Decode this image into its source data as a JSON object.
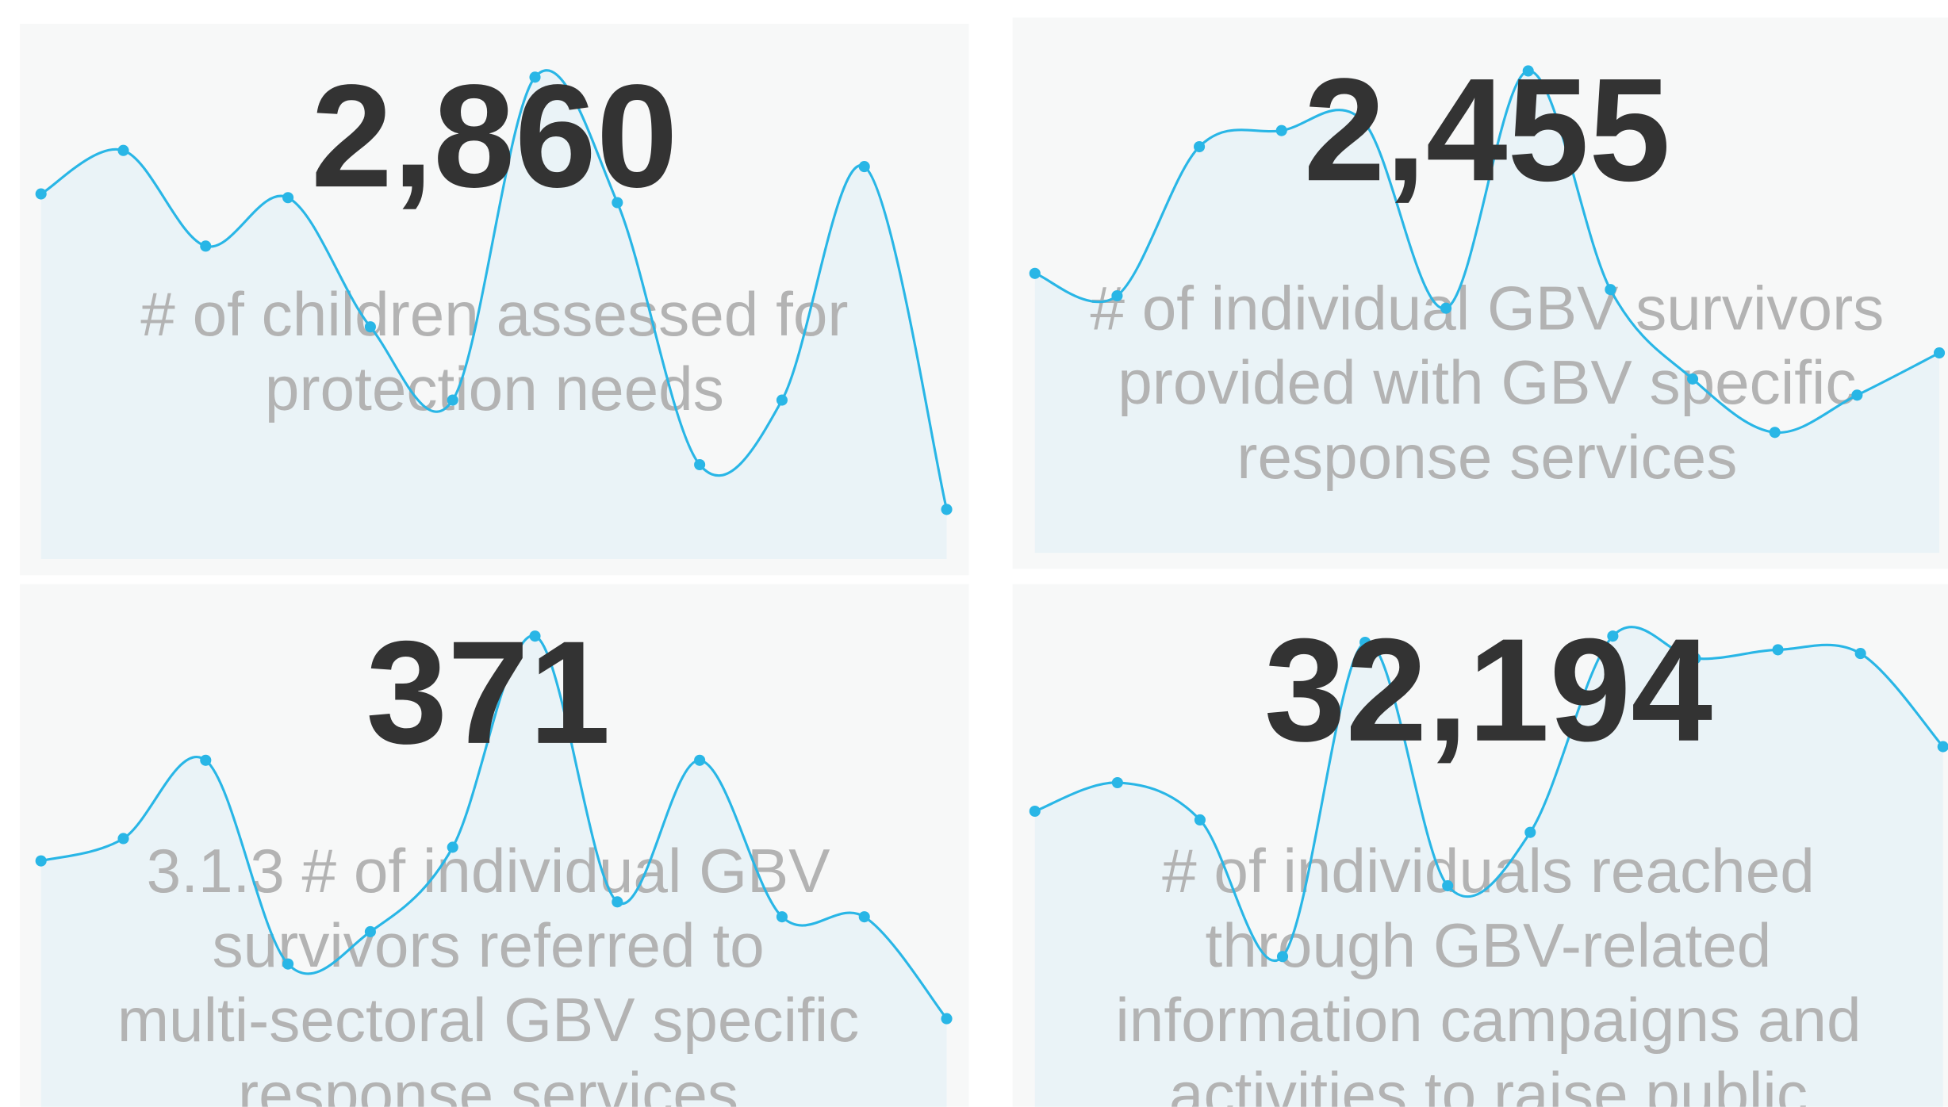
{
  "cards": [
    {
      "value": "2,860",
      "label": [
        "# of children assessed for",
        "protection needs"
      ],
      "sparkline": {
        "type": "line",
        "values": [
          294,
          329,
          252,
          291,
          187,
          128,
          388,
          287,
          76,
          128,
          316,
          40
        ],
        "ylim": [
          0,
          400
        ],
        "color": "#29b6e6"
      }
    },
    {
      "value": "2,455",
      "label": [
        "# of individual GBV survivors",
        "provided with GBV specific",
        "response services"
      ],
      "sparkline": {
        "type": "line",
        "values": [
          225,
          207,
          327,
          340,
          347,
          197,
          388,
          212,
          140,
          97,
          127,
          161
        ],
        "ylim": [
          0,
          400
        ],
        "color": "#29b6e6"
      }
    },
    {
      "value": "371",
      "label": [
        "3.1.3 # of individual GBV",
        "survivors referred to",
        "multi-sectoral GBV specific",
        "response services"
      ],
      "sparkline": {
        "type": "line",
        "values": [
          212,
          230,
          293,
          129,
          155,
          223,
          393,
          179,
          293,
          167,
          167,
          85
        ],
        "ylim": [
          0,
          400
        ],
        "color": "#29b6e6"
      }
    },
    {
      "value": "32,194",
      "label": [
        "# of individuals reached",
        "through GBV-related",
        "information campaigns and",
        "activities to raise public"
      ],
      "sparkline": {
        "type": "line",
        "values": [
          252,
          275,
          245,
          135,
          388,
          192,
          235,
          393,
          375,
          382,
          379,
          304
        ],
        "ylim": [
          0,
          400
        ],
        "color": "#29b6e6"
      }
    }
  ]
}
